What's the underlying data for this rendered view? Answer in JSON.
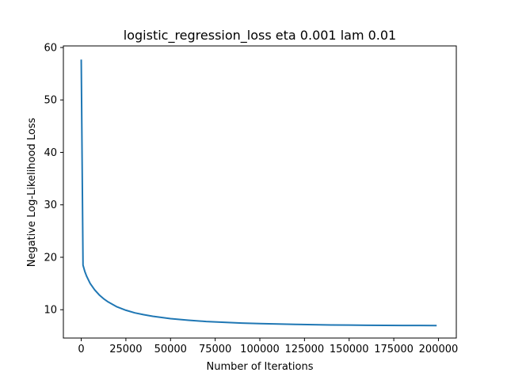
{
  "chart_data": {
    "type": "line",
    "title": "logistic_regression_loss eta 0.001 lam 0.01",
    "xlabel": "Number of Iterations",
    "ylabel": "Negative Log-Likelihood Loss",
    "xlim": [
      -10000,
      210000
    ],
    "ylim": [
      4.6,
      60.3
    ],
    "xticks": [
      0,
      25000,
      50000,
      75000,
      100000,
      125000,
      150000,
      175000,
      200000
    ],
    "yticks": [
      10,
      20,
      30,
      40,
      50,
      60
    ],
    "grid": false,
    "line_color": "#1f77b4",
    "series": [
      {
        "x": [
          0,
          1000,
          2000,
          3000,
          5000,
          7500,
          10000,
          12500,
          15000,
          20000,
          25000,
          30000,
          35000,
          40000,
          50000,
          60000,
          70000,
          80000,
          90000,
          100000,
          110000,
          120000,
          130000,
          140000,
          150000,
          160000,
          170000,
          180000,
          190000,
          199000
        ],
        "values": [
          57.7,
          18.5,
          17.3,
          16.4,
          15.0,
          13.8,
          12.85,
          12.1,
          11.5,
          10.55,
          9.9,
          9.4,
          9.05,
          8.75,
          8.3,
          8.0,
          7.75,
          7.6,
          7.45,
          7.35,
          7.27,
          7.2,
          7.15,
          7.1,
          7.07,
          7.04,
          7.02,
          7.0,
          6.99,
          6.98
        ]
      }
    ]
  }
}
